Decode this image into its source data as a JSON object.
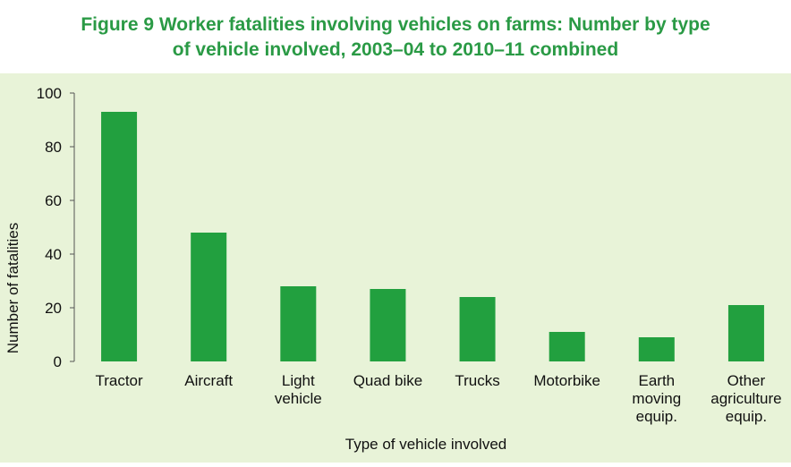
{
  "chart_data": {
    "type": "bar",
    "title_line1": "Figure 9 Worker fatalities involving vehicles on farms: Number by type",
    "title_line2": "of vehicle involved, 2003–04 to 2010–11 combined",
    "categories": [
      "Tractor",
      "Aircraft",
      "Light vehicle",
      "Quad bike",
      "Trucks",
      "Motorbike",
      "Earth moving equip.",
      "Other agriculture equip."
    ],
    "category_label_lines": [
      [
        "Tractor"
      ],
      [
        "Aircraft"
      ],
      [
        "Light",
        "vehicle"
      ],
      [
        "Quad bike"
      ],
      [
        "Trucks"
      ],
      [
        "Motorbike"
      ],
      [
        "Earth",
        "moving",
        "equip."
      ],
      [
        "Other",
        "agriculture",
        "equip."
      ]
    ],
    "values": [
      93,
      48,
      28,
      27,
      24,
      11,
      9,
      21
    ],
    "xlabel": "Type of vehicle involved",
    "ylabel": "Number of fatalities",
    "ylim": [
      0,
      100
    ],
    "yticks": [
      0,
      20,
      40,
      60,
      80,
      100
    ],
    "grid": false,
    "colors": {
      "bar": "#22a03f",
      "title": "#2a9a45",
      "background": "#e8f3d8",
      "axis": "#555555"
    }
  }
}
